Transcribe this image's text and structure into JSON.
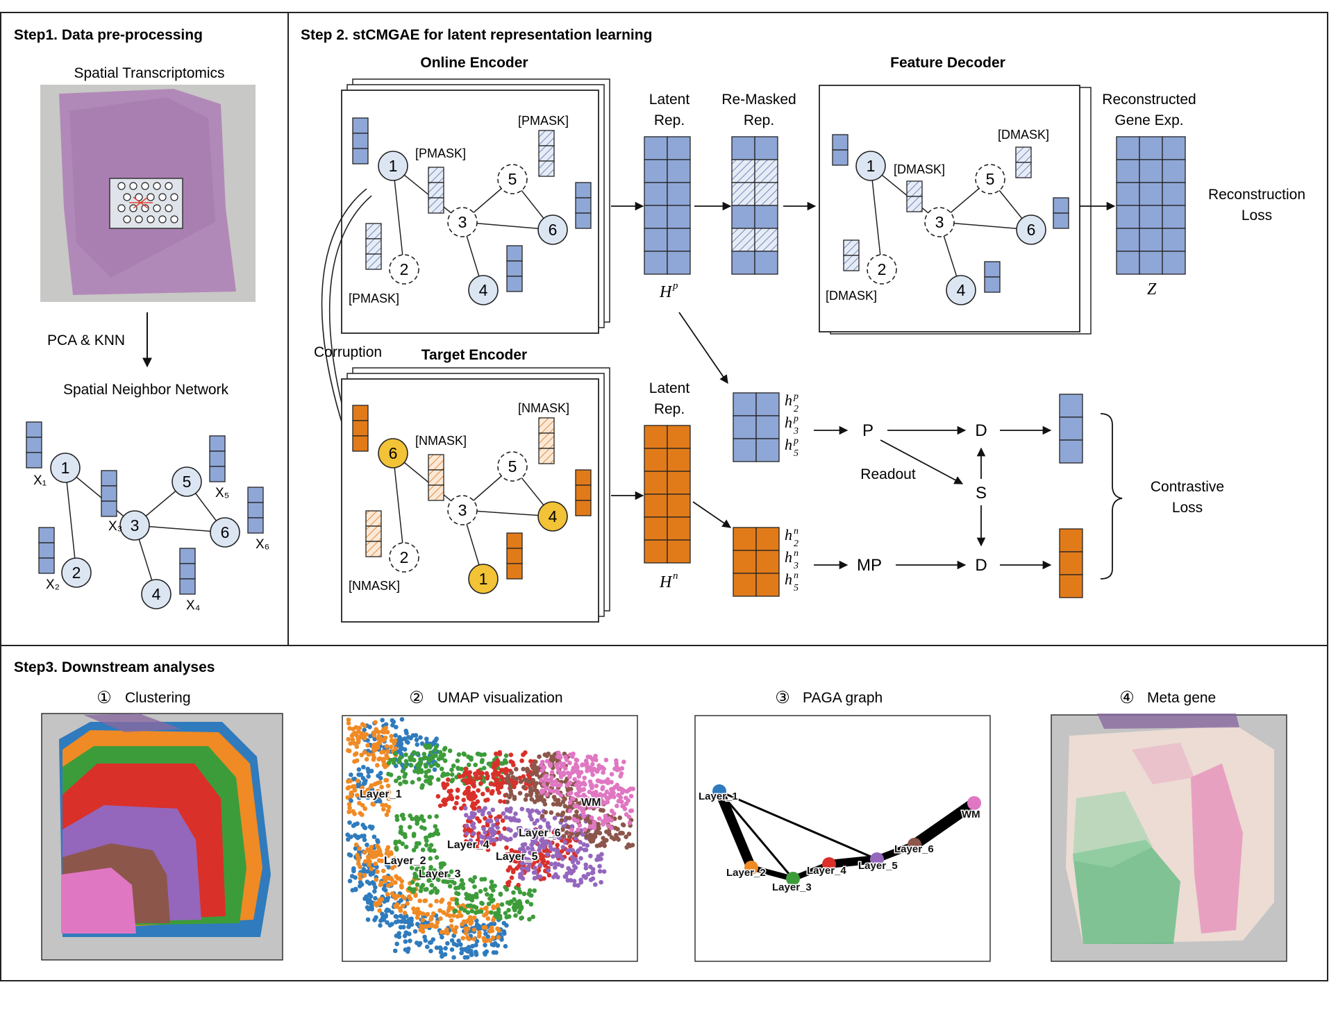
{
  "step1": {
    "title": "Step1. Data pre-processing",
    "tissue_label": "Spatial Transcriptomics",
    "pca_label": "PCA & KNN",
    "network_label": "Spatial Neighbor Network",
    "node_labels": [
      "1",
      "2",
      "3",
      "4",
      "5",
      "6"
    ],
    "feature_labels": [
      "X₁",
      "X₂",
      "X₃",
      "X₄",
      "X₅",
      "X₆"
    ]
  },
  "step2": {
    "title": "Step 2. stCMGAE for latent representation learning",
    "online_encoder": "Online Encoder",
    "target_encoder": "Target Encoder",
    "feature_decoder": "Feature Decoder",
    "corruption": "Corruption",
    "pmask": "[PMASK]",
    "nmask": "[NMASK]",
    "dmask": "[DMASK]",
    "latent_rep_1": "Latent",
    "latent_rep_2": "Rep.",
    "remasked_1": "Re-Masked",
    "remasked_2": "Rep.",
    "recon_gene_1": "Reconstructed",
    "recon_gene_2": "Gene Exp.",
    "recon_loss_1": "Reconstruction",
    "recon_loss_2": "Loss",
    "contrastive_loss_1": "Contrastive",
    "contrastive_loss_2": "Loss",
    "Hp": "H",
    "Hp_sup": "p",
    "Hn": "H",
    "Hn_sup": "n",
    "Z": "Z",
    "P": "P",
    "MP": "MP",
    "D": "D",
    "S": "S",
    "readout": "Readout",
    "h_base": "h",
    "hp_sub": [
      "2",
      "3",
      "5"
    ],
    "hp_sup": "p",
    "hn_sub": [
      "2",
      "3",
      "5"
    ],
    "hn_sup": "n",
    "node_labels": [
      "1",
      "2",
      "3",
      "4",
      "5",
      "6"
    ]
  },
  "step3": {
    "title": "Step3. Downstream analyses",
    "panels": [
      {
        "num": "①",
        "label": "Clustering"
      },
      {
        "num": "②",
        "label": "UMAP visualization"
      },
      {
        "num": "③",
        "label": "PAGA graph"
      },
      {
        "num": "④",
        "label": "Meta gene"
      }
    ],
    "umap_labels": [
      "Layer_1",
      "Layer_2",
      "Layer_3",
      "Layer_4",
      "Layer_5",
      "Layer_6",
      "WM"
    ],
    "paga_labels": [
      "Layer_1",
      "Layer_2",
      "Layer_3",
      "Layer_4",
      "Layer_5",
      "Layer_6",
      "WM"
    ]
  },
  "colors": {
    "blue_block": "#8fa7d6",
    "orange_block": "#e17b1a",
    "node_blue": "#dce6f3",
    "node_yellow": "#f2c237",
    "layer_1": "#2f7bbd",
    "layer_2": "#f08a24",
    "layer_3": "#3d9c3a",
    "layer_4": "#d9302a",
    "layer_5": "#9467bd",
    "layer_6": "#8c564b",
    "wm": "#e077c2"
  }
}
